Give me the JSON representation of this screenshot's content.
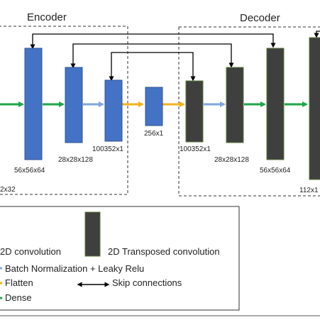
{
  "sections": {
    "encoder_title": "Encoder",
    "decoder_title": "Decoder"
  },
  "encoder": {
    "dim_small_left": "2x32",
    "block1_dim": "56x56x64",
    "block2_dim": "28x28x128",
    "block3_dim": "100352x1"
  },
  "bottleneck": {
    "dim": "256x1"
  },
  "decoder": {
    "block1_dim": "100352x1",
    "block2_dim": "28x28x128",
    "block3_dim": "56x56x64",
    "block4_dim": "112x1"
  },
  "legend": {
    "conv_label": "2D convolution",
    "tconv_label": "2D Transposed convolution",
    "bn_label": "Batch Normalization + Leaky Relu",
    "flatten_label": "Flatten",
    "dense_label": "Dense",
    "skip_label": "Skip connections"
  },
  "colors": {
    "conv_block": "#4472C4",
    "tconv_block": "#3F3F3F",
    "green_arrow": "#1FA64A",
    "light_blue_arrow": "#7FA7DB",
    "yellow_arrow": "#F2B21A",
    "skip_line": "#000000"
  }
}
